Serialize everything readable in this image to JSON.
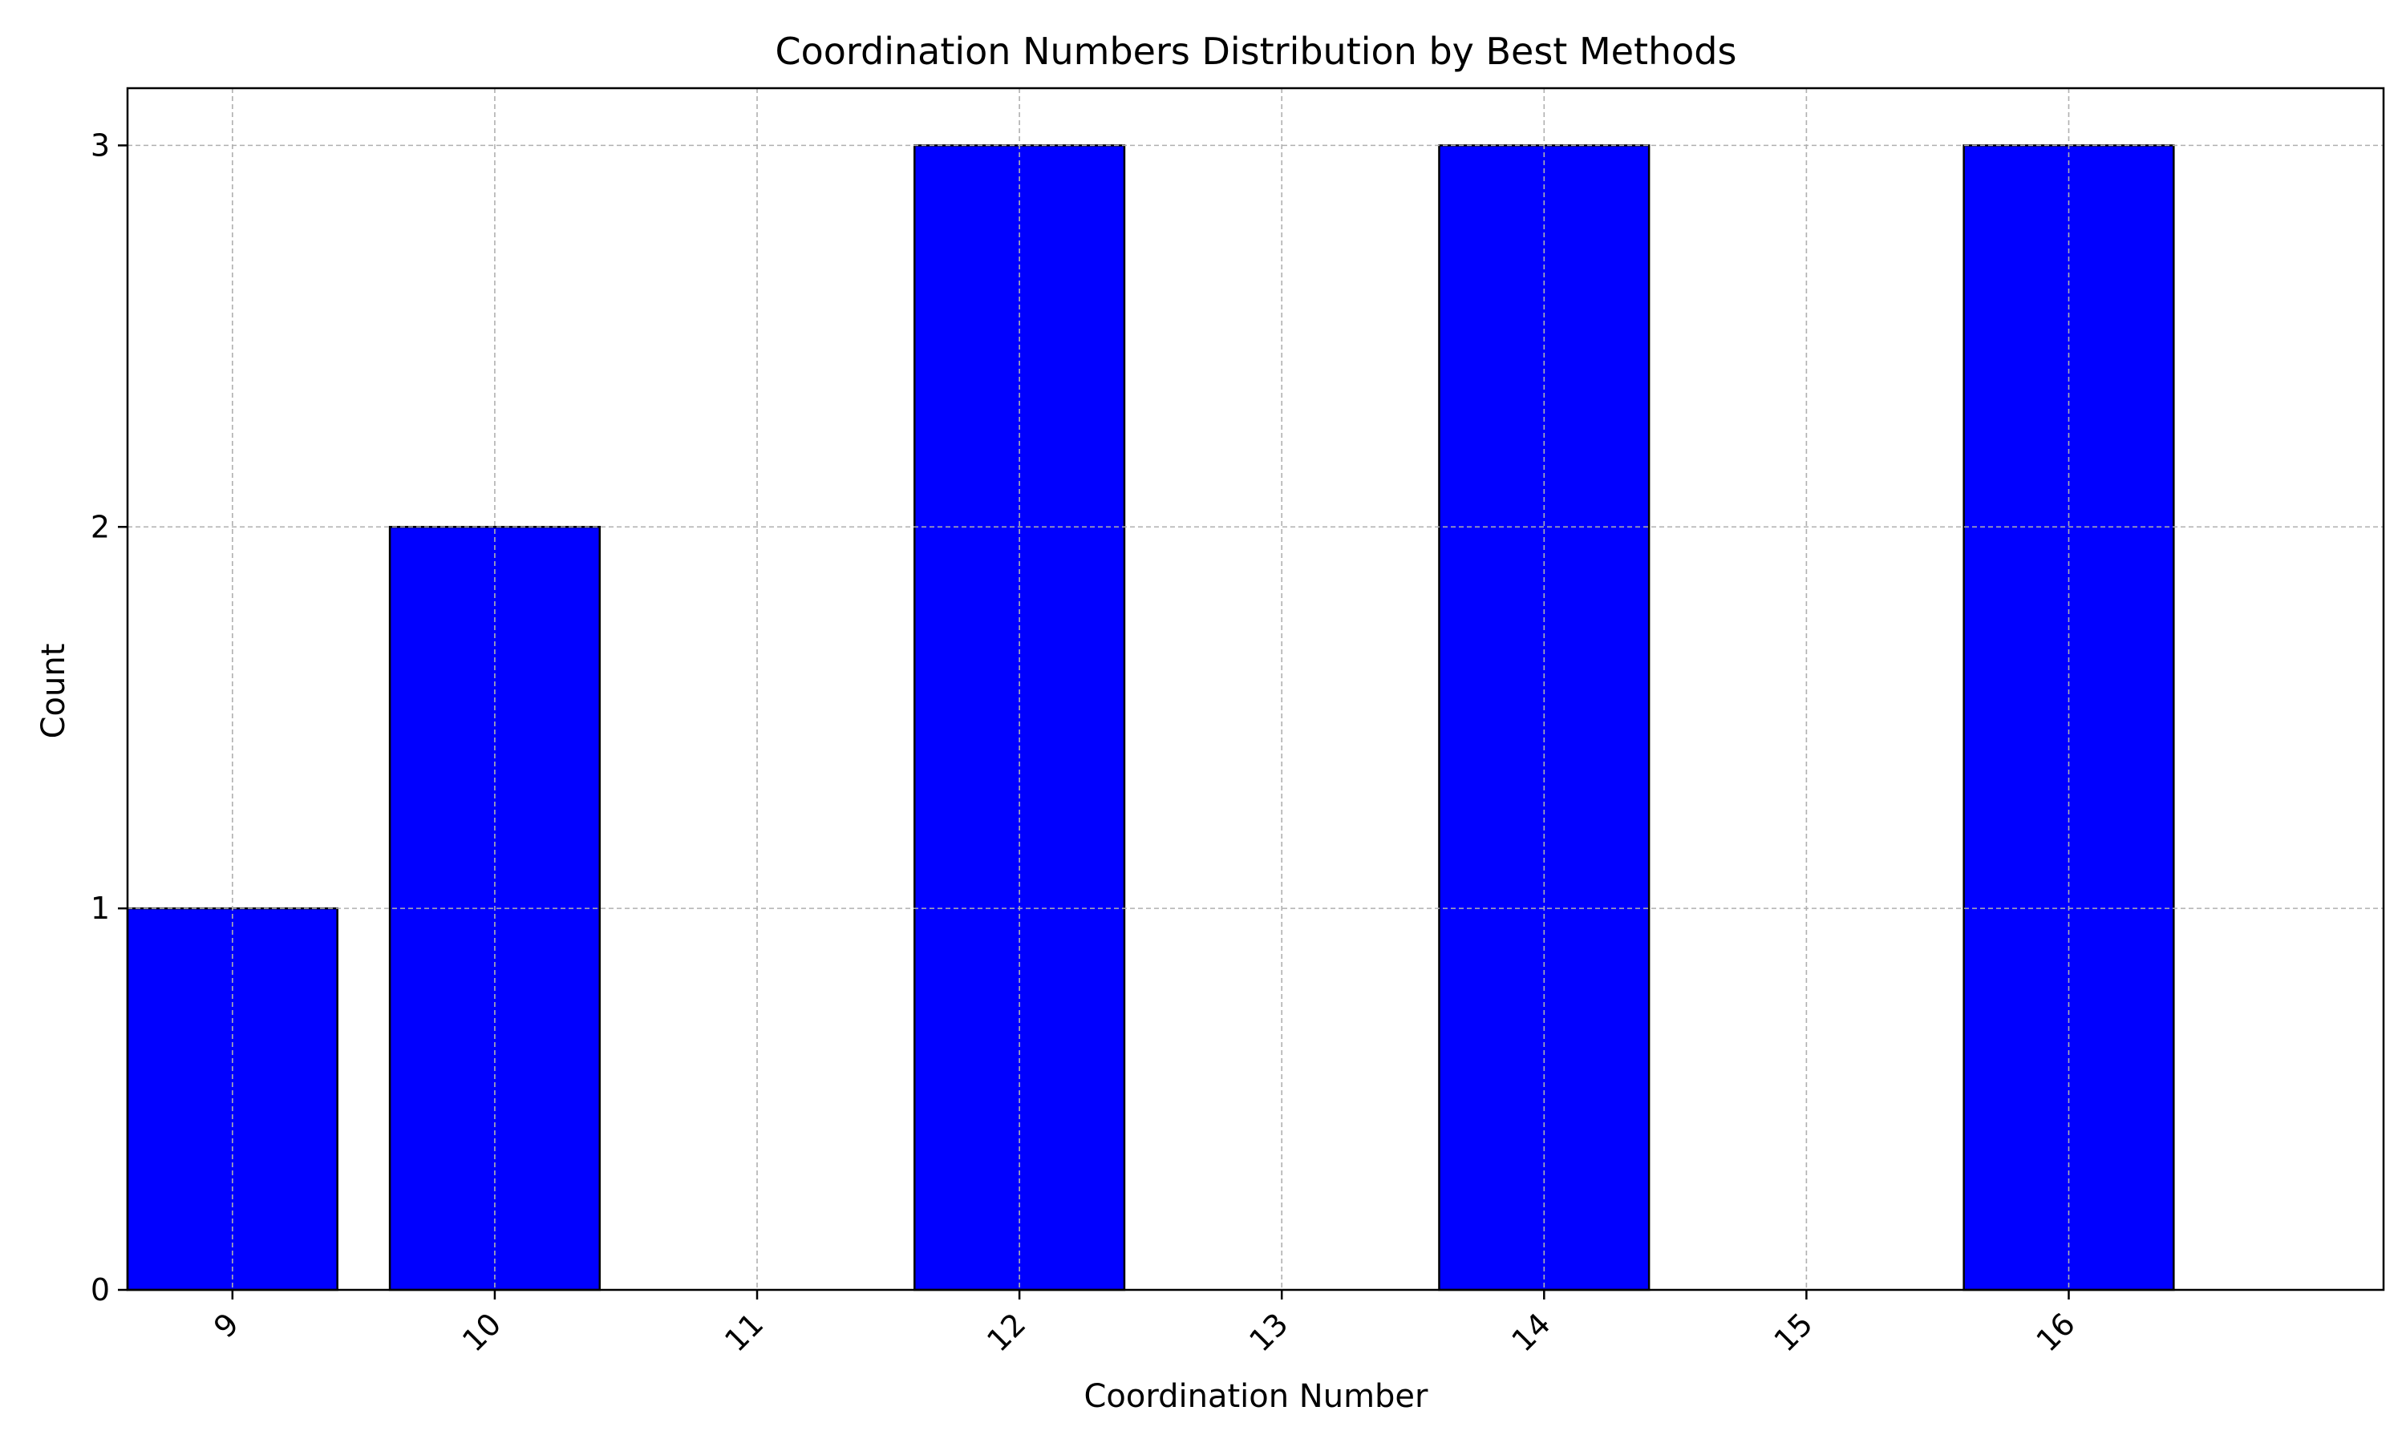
{
  "chart_data": {
    "type": "bar",
    "title": "Coordination Numbers Distribution by Best Methods",
    "xlabel": "Coordination Number",
    "ylabel": "Count",
    "categories": [
      "9",
      "10",
      "11",
      "12",
      "13",
      "14",
      "15",
      "16"
    ],
    "x_ticks": [
      "9",
      "10",
      "11",
      "12",
      "13",
      "14",
      "15",
      "16"
    ],
    "y_ticks": [
      "0",
      "1",
      "2",
      "3"
    ],
    "bars": [
      {
        "x": 9,
        "value": 1
      },
      {
        "x": 10,
        "value": 2
      },
      {
        "x": 12,
        "value": 3
      },
      {
        "x": 14,
        "value": 3
      },
      {
        "x": 16,
        "value": 3
      }
    ],
    "xlim": [
      8.6,
      17.2
    ],
    "ylim": [
      0,
      3.15
    ],
    "grid": true,
    "legend": "none",
    "colors": {
      "bar_fill": "#0000ff",
      "bar_edge": "#000000",
      "grid": "#b0b0b0",
      "axes": "#000000"
    }
  }
}
